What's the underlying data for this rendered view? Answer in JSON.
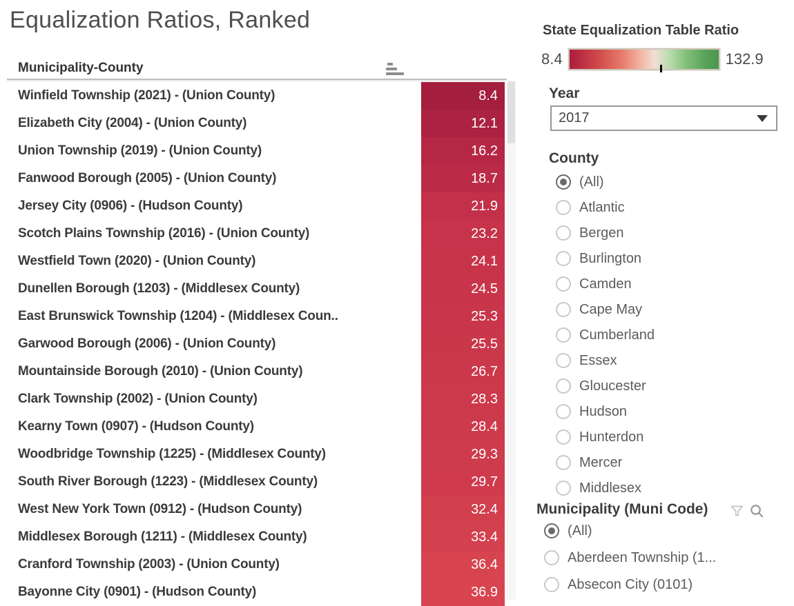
{
  "title": "Equalization Ratios, Ranked",
  "table": {
    "column_header": "Municipality-County",
    "rows": [
      {
        "name": "Winfield Township (2021) - (Union County)",
        "value": "8.4",
        "color": "#a41e3d"
      },
      {
        "name": "Elizabeth City (2004) - (Union County)",
        "value": "12.1",
        "color": "#ab2242"
      },
      {
        "name": "Union Township (2019) - (Union County)",
        "value": "16.2",
        "color": "#b52745"
      },
      {
        "name": "Fanwood Borough (2005) - (Union County)",
        "value": "18.7",
        "color": "#bb2b47"
      },
      {
        "name": "Jersey City (0906) - (Hudson County)",
        "value": "21.9",
        "color": "#c33049"
      },
      {
        "name": "Scotch Plains Township (2016) - (Union County)",
        "value": "23.2",
        "color": "#c6334a"
      },
      {
        "name": "Westfield Town (2020) - (Union County)",
        "value": "24.1",
        "color": "#c7344a"
      },
      {
        "name": "Dunellen Borough (1203) - (Middlesex County)",
        "value": "24.5",
        "color": "#c8354a"
      },
      {
        "name": "East Brunswick Township (1204) - (Middlesex Coun..",
        "value": "25.3",
        "color": "#c9364b"
      },
      {
        "name": "Garwood Borough (2006) - (Union County)",
        "value": "25.5",
        "color": "#c9374b"
      },
      {
        "name": "Mountainside Borough (2010) - (Union County)",
        "value": "26.7",
        "color": "#cb384b"
      },
      {
        "name": "Clark Township (2002) - (Union County)",
        "value": "28.3",
        "color": "#cd394c"
      },
      {
        "name": "Kearny Town (0907) - (Hudson County)",
        "value": "28.4",
        "color": "#cd3a4c"
      },
      {
        "name": "Woodbridge Township (1225) - (Middlesex County)",
        "value": "29.3",
        "color": "#ce3b4c"
      },
      {
        "name": "South River Borough (1223) - (Middlesex County)",
        "value": "29.7",
        "color": "#cf3b4c"
      },
      {
        "name": "West New York Town (0912) - (Hudson County)",
        "value": "32.4",
        "color": "#d23f4d"
      },
      {
        "name": "Middlesex Borough (1211) - (Middlesex County)",
        "value": "33.4",
        "color": "#d4414e"
      },
      {
        "name": "Cranford Township (2003) - (Union County)",
        "value": "36.4",
        "color": "#d7444f"
      },
      {
        "name": "Bayonne City (0901) - (Hudson County)",
        "value": "36.9",
        "color": "#d84550"
      }
    ]
  },
  "legend": {
    "title": "State Equalization Table Ratio",
    "min_label": "8.4",
    "max_label": "132.9",
    "gradient_stops": [
      "#ae1c3e 0%",
      "#d14b4b 20%",
      "#e87f6e 36%",
      "#f4b6a4 48%",
      "#f1ded4 57%",
      "#b9dcab 67%",
      "#80bd77 79%",
      "#55a058 92%",
      "#4c9750 100%"
    ],
    "tick_position": "61%"
  },
  "filters": {
    "year": {
      "label": "Year",
      "selected": "2017"
    },
    "county": {
      "label": "County",
      "options": [
        {
          "label": "(All)",
          "selected": true
        },
        {
          "label": "Atlantic",
          "selected": false
        },
        {
          "label": "Bergen",
          "selected": false
        },
        {
          "label": "Burlington",
          "selected": false
        },
        {
          "label": "Camden",
          "selected": false
        },
        {
          "label": "Cape May",
          "selected": false
        },
        {
          "label": "Cumberland",
          "selected": false
        },
        {
          "label": "Essex",
          "selected": false
        },
        {
          "label": "Gloucester",
          "selected": false
        },
        {
          "label": "Hudson",
          "selected": false
        },
        {
          "label": "Hunterdon",
          "selected": false
        },
        {
          "label": "Mercer",
          "selected": false
        },
        {
          "label": "Middlesex",
          "selected": false
        }
      ]
    },
    "municipality": {
      "label": "Municipality (Muni Code)",
      "options": [
        {
          "label": "(All)",
          "selected": true
        },
        {
          "label": "Aberdeen Township (1...",
          "selected": false
        },
        {
          "label": "Absecon City (0101)",
          "selected": false
        }
      ]
    }
  }
}
